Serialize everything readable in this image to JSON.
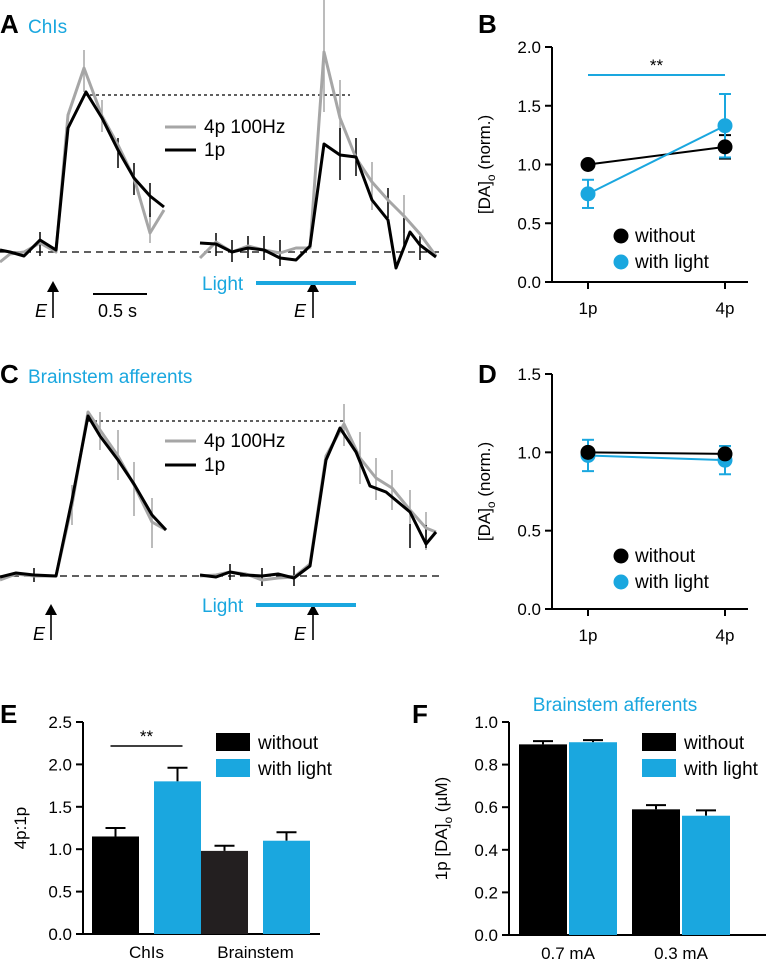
{
  "colors": {
    "black": "#000000",
    "gray": "#a6a6a6",
    "cyan": "#1aa7df",
    "bar_dark": "#231f20"
  },
  "panels": {
    "A": {
      "label": "A",
      "title": "ChIs"
    },
    "B": {
      "label": "B"
    },
    "C": {
      "label": "C",
      "title": "Brainstem afferents"
    },
    "D": {
      "label": "D"
    },
    "E": {
      "label": "E"
    },
    "F": {
      "label": "F"
    }
  },
  "traces_legend": {
    "gray": "4p 100Hz",
    "black": "1p"
  },
  "stim_label": "E",
  "light_label": "Light",
  "scale_label": "0.5 s",
  "chart_data": [
    {
      "id": "B",
      "type": "line",
      "categories": [
        "1p",
        "4p"
      ],
      "ylabel": "[DA]o (norm.)",
      "ylabel_main": "[DA]",
      "ylabel_sub": "o",
      "ylabel_rest": " (norm.)",
      "ylim": [
        0,
        2.0
      ],
      "yticks": [
        "0.0",
        "0.5",
        "1.0",
        "1.5",
        "2.0"
      ],
      "series": [
        {
          "name": "without",
          "values": [
            1.0,
            1.15
          ],
          "errors": [
            0.0,
            0.1
          ]
        },
        {
          "name": "with light",
          "values": [
            0.75,
            1.33
          ],
          "errors": [
            0.12,
            0.27
          ]
        }
      ],
      "significance": "**",
      "legend": "bottom-right"
    },
    {
      "id": "D",
      "type": "line",
      "categories": [
        "1p",
        "4p"
      ],
      "ylabel": "[DA]o (norm.)",
      "ylabel_main": "[DA]",
      "ylabel_sub": "o",
      "ylabel_rest": " (norm.)",
      "ylim": [
        0,
        1.5
      ],
      "yticks": [
        "0.0",
        "0.5",
        "1.0",
        "1.5"
      ],
      "series": [
        {
          "name": "without",
          "values": [
            1.0,
            0.99
          ],
          "errors": [
            0.0,
            0.05
          ]
        },
        {
          "name": "with light",
          "values": [
            0.98,
            0.95
          ],
          "errors": [
            0.1,
            0.09
          ]
        }
      ],
      "legend": "bottom-right"
    },
    {
      "id": "E",
      "type": "bar",
      "categories": [
        "ChIs",
        "Brainstem"
      ],
      "ylabel": "4p:1p",
      "ylim": [
        0,
        2.5
      ],
      "yticks": [
        "0.0",
        "0.5",
        "1.0",
        "1.5",
        "2.0",
        "2.5"
      ],
      "series": [
        {
          "name": "without",
          "values": [
            1.15,
            0.98
          ],
          "errors": [
            0.1,
            0.06
          ]
        },
        {
          "name": "with light",
          "values": [
            1.8,
            1.1
          ],
          "errors": [
            0.16,
            0.1
          ]
        }
      ],
      "significance": "**",
      "legend": "top-right"
    },
    {
      "id": "F",
      "type": "bar",
      "title": "Brainstem afferents",
      "categories": [
        "0.7 mA",
        "0.3 mA"
      ],
      "ylabel": "1p [DA]o (µM)",
      "ylabel_main": "1p [DA]",
      "ylabel_sub": "o",
      "ylabel_rest": " (µM)",
      "ylim": [
        0,
        1.0
      ],
      "yticks": [
        "0.0",
        "0.2",
        "0.4",
        "0.6",
        "0.8",
        "1.0"
      ],
      "series": [
        {
          "name": "without",
          "values": [
            0.895,
            0.59
          ],
          "errors": [
            0.015,
            0.02
          ]
        },
        {
          "name": "with light",
          "values": [
            0.905,
            0.56
          ],
          "errors": [
            0.01,
            0.025
          ]
        }
      ],
      "legend": "top-right"
    }
  ]
}
